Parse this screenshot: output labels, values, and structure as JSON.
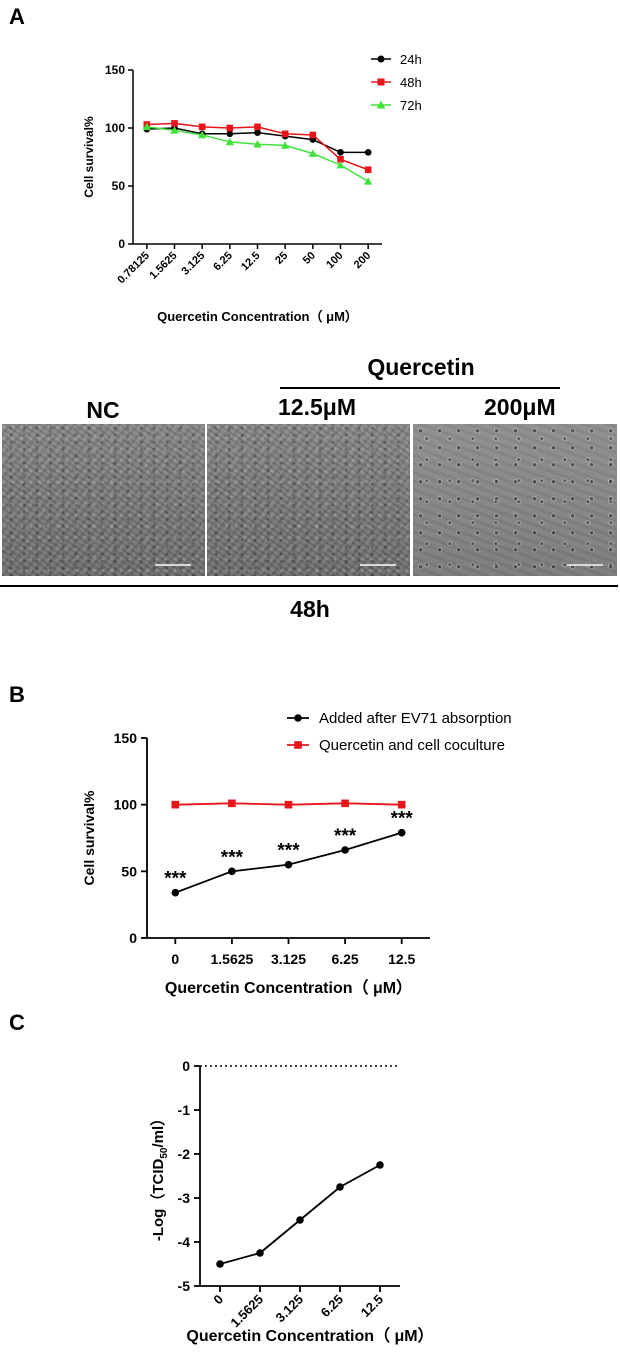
{
  "panels": {
    "a": "A",
    "b": "B",
    "c": "C"
  },
  "micrographs": {
    "header": "Quercetin",
    "nc_label": "NC",
    "dose1_label": "12.5μM",
    "dose2_label": "200μM",
    "time_label": "48h"
  },
  "colors": {
    "black": "#000000",
    "red": "#e8141c",
    "green": "#3fe23a"
  },
  "chart_data": [
    {
      "type": "line",
      "panel": "A",
      "ylabel": "Cell survival%",
      "xlabel": "Quercetin Concentration（ μM）",
      "categories": [
        "0.78125",
        "1.5625",
        "3.125",
        "6.25",
        "12.5",
        "25",
        "50",
        "100",
        "200"
      ],
      "ylim": [
        0,
        150
      ],
      "yticks": [
        0,
        50,
        100,
        150
      ],
      "legend_position": "top-right",
      "series": [
        {
          "name": "24h",
          "color": "#000000",
          "marker": "circle",
          "values": [
            99,
            100,
            95,
            95,
            96,
            93,
            90,
            79,
            79
          ]
        },
        {
          "name": "48h",
          "color": "#e8141c",
          "marker": "square",
          "values": [
            103,
            104,
            101,
            100,
            101,
            95,
            94,
            73,
            64
          ]
        },
        {
          "name": "72h",
          "color": "#3fe23a",
          "marker": "triangle",
          "values": [
            101,
            98,
            94,
            88,
            86,
            85,
            78,
            68,
            54
          ]
        }
      ]
    },
    {
      "type": "line",
      "panel": "B",
      "ylabel": "Cell survival%",
      "xlabel": "Quercetin Concentration（ μM）",
      "categories": [
        "0",
        "1.5625",
        "3.125",
        "6.25",
        "12.5"
      ],
      "ylim": [
        0,
        150
      ],
      "yticks": [
        0,
        50,
        100,
        150
      ],
      "legend_position": "top-right",
      "series": [
        {
          "name": "Added after EV71 absorption",
          "color": "#000000",
          "marker": "circle",
          "values": [
            34,
            50,
            55,
            66,
            79
          ],
          "annotations": [
            "***",
            "***",
            "***",
            "***",
            "***"
          ]
        },
        {
          "name": "Quercetin and cell coculture",
          "color": "#e8141c",
          "marker": "square",
          "values": [
            100,
            101,
            100,
            101,
            100
          ]
        }
      ]
    },
    {
      "type": "line",
      "panel": "C",
      "ylabel_main": "-Log（TCID",
      "ylabel_sub": "50",
      "ylabel_tail": "/ml）",
      "xlabel": "Quercetin Concentration（ μM）",
      "categories": [
        "0",
        "1.5625",
        "3.125",
        "6.25",
        "12.5"
      ],
      "ylim": [
        -5,
        0
      ],
      "yticks": [
        -5,
        -4,
        -3,
        -2,
        -1,
        0
      ],
      "reference_line": 0,
      "series": [
        {
          "color": "#000000",
          "marker": "circle",
          "values": [
            -4.5,
            -4.25,
            -3.5,
            -2.75,
            -2.25
          ]
        }
      ]
    }
  ]
}
